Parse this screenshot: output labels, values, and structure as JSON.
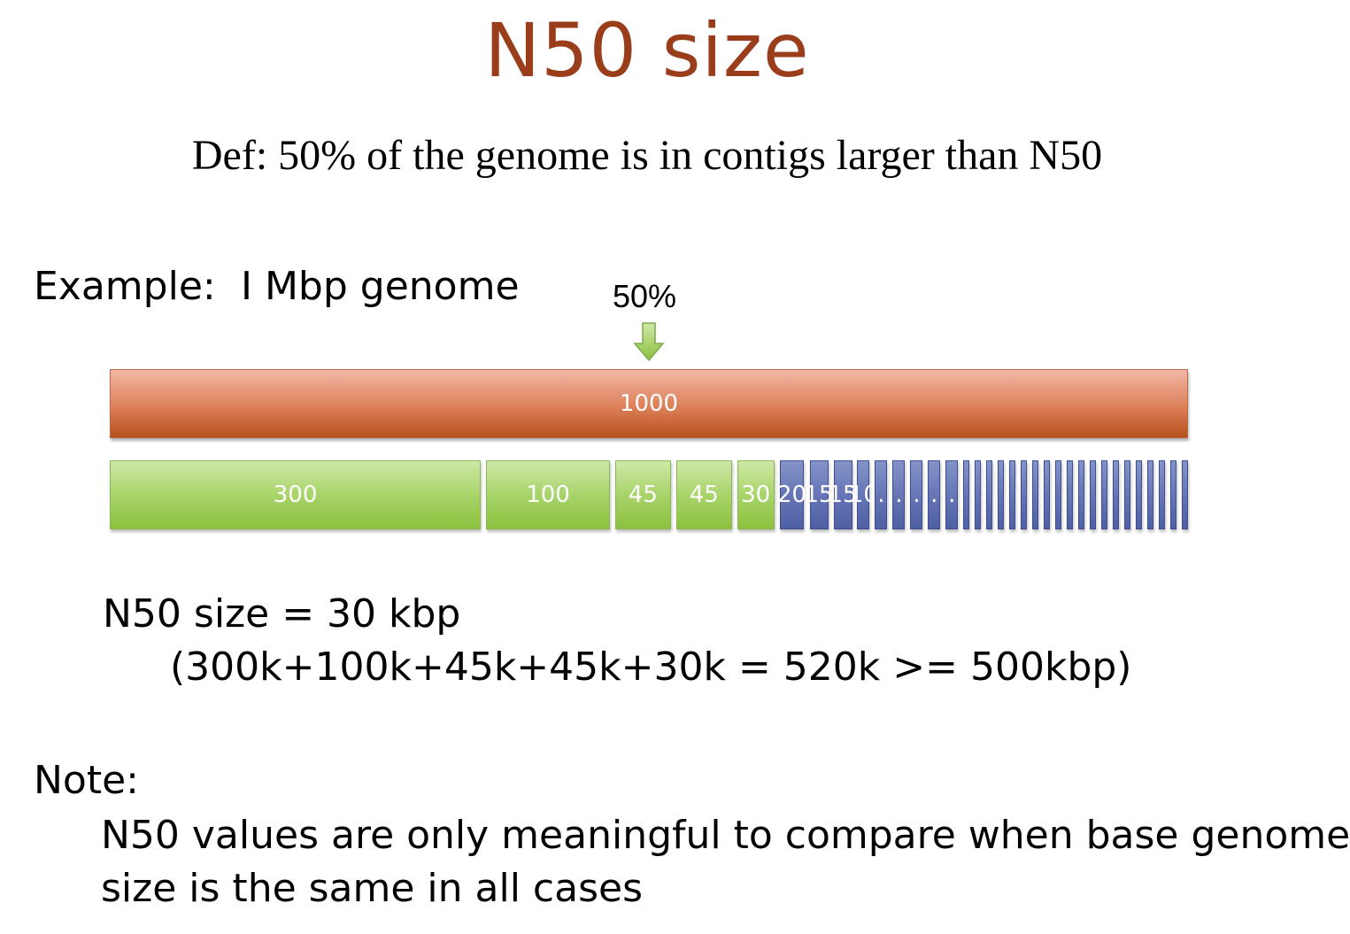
{
  "title": "N50 size",
  "definition": "Def: 50% of the genome is in contigs larger than N50",
  "example": {
    "label": "Example:",
    "genome": "I Mbp genome"
  },
  "marker": {
    "label": "50%",
    "arrow_icon": "down-arrow-icon",
    "color": "#8cc13e"
  },
  "genome_bar": {
    "label": "1000",
    "value": 1000,
    "color": "#c5602e"
  },
  "contigs": {
    "total": 1000,
    "colors": {
      "green": "#9ccd56",
      "blue": "#6072b0"
    },
    "items": [
      {
        "label": "300",
        "value": 300,
        "group": "green"
      },
      {
        "label": "100",
        "value": 100,
        "group": "green"
      },
      {
        "label": "45",
        "value": 45,
        "group": "green"
      },
      {
        "label": "45",
        "value": 45,
        "group": "green"
      },
      {
        "label": "30",
        "value": 30,
        "group": "green"
      },
      {
        "label": "20",
        "value": 20,
        "group": "blue"
      },
      {
        "label": "15",
        "value": 15,
        "group": "blue"
      },
      {
        "label": "15",
        "value": 15,
        "group": "blue"
      },
      {
        "label": "10",
        "value": 10,
        "group": "blue"
      },
      {
        "label": ".",
        "value": 10,
        "group": "blue"
      },
      {
        "label": ".",
        "value": 10,
        "group": "blue"
      },
      {
        "label": ".",
        "value": 10,
        "group": "blue"
      },
      {
        "label": ".",
        "value": 10,
        "group": "blue"
      },
      {
        "label": ".",
        "value": 10,
        "group": "blue"
      },
      {
        "label": "",
        "value": 5,
        "group": "blue"
      },
      {
        "label": "",
        "value": 5,
        "group": "blue"
      },
      {
        "label": "",
        "value": 5,
        "group": "blue"
      },
      {
        "label": "",
        "value": 5,
        "group": "blue"
      },
      {
        "label": "",
        "value": 5,
        "group": "blue"
      },
      {
        "label": "",
        "value": 5,
        "group": "blue"
      },
      {
        "label": "",
        "value": 5,
        "group": "blue"
      },
      {
        "label": "",
        "value": 5,
        "group": "blue"
      },
      {
        "label": "",
        "value": 5,
        "group": "blue"
      },
      {
        "label": "",
        "value": 5,
        "group": "blue"
      },
      {
        "label": "",
        "value": 5,
        "group": "blue"
      },
      {
        "label": "",
        "value": 5,
        "group": "blue"
      },
      {
        "label": "",
        "value": 5,
        "group": "blue"
      },
      {
        "label": "",
        "value": 5,
        "group": "blue"
      },
      {
        "label": "",
        "value": 5,
        "group": "blue"
      },
      {
        "label": "",
        "value": 5,
        "group": "blue"
      },
      {
        "label": "",
        "value": 5,
        "group": "blue"
      },
      {
        "label": "",
        "value": 5,
        "group": "blue"
      },
      {
        "label": "",
        "value": 5,
        "group": "blue"
      },
      {
        "label": "",
        "value": 5,
        "group": "blue"
      }
    ]
  },
  "result": {
    "n50": "N50 size = 30 kbp",
    "calculation": "(300k+100k+45k+45k+30k = 520k >= 500kbp)"
  },
  "note": {
    "label": "Note:",
    "line1": "N50 values are only meaningful to compare when base genome",
    "line2": "size is the same in all cases"
  }
}
